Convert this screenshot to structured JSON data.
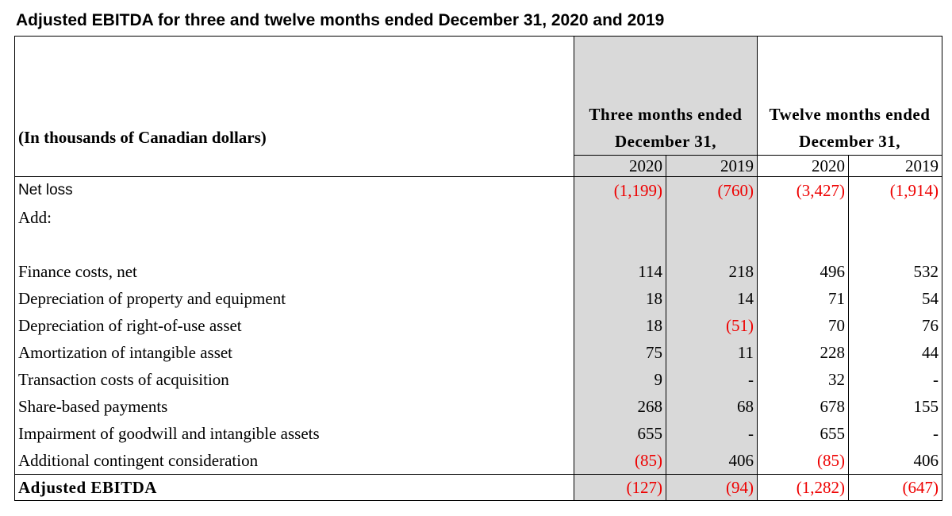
{
  "title": "Adjusted EBITDA for three and twelve months ended December 31, 2020 and 2019",
  "header": {
    "unit_label": "(In thousands of Canadian dollars)",
    "column_groups": [
      "Three months ended December 31,",
      "Twelve months ended December 31,"
    ],
    "years": [
      "2020",
      "2019",
      "2020",
      "2019"
    ]
  },
  "table": {
    "rows": [
      {
        "label": "Net loss",
        "values": [
          "(1,199)",
          "(760)",
          "(3,427)",
          "(1,914)"
        ]
      },
      {
        "label": "Add:"
      },
      {
        "label": "Finance costs, net",
        "values": [
          "114",
          "218",
          "496",
          "532"
        ]
      },
      {
        "label": "Depreciation of property and equipment",
        "values": [
          "18",
          "14",
          "71",
          "54"
        ]
      },
      {
        "label": "Depreciation of right-of-use asset",
        "values": [
          "18",
          "(51)",
          "70",
          "76"
        ]
      },
      {
        "label": "Amortization of intangible asset",
        "values": [
          "75",
          "11",
          "228",
          "44"
        ]
      },
      {
        "label": "Transaction costs of acquisition",
        "values": [
          "9",
          "-",
          "32",
          "-"
        ]
      },
      {
        "label": "Share-based payments",
        "values": [
          "268",
          "68",
          "678",
          "155"
        ]
      },
      {
        "label": "Impairment of goodwill and intangible assets",
        "values": [
          "655",
          "-",
          "655",
          "-"
        ]
      },
      {
        "label": "Additional contingent consideration",
        "values": [
          "(85)",
          "406",
          "(85)",
          "406"
        ]
      }
    ],
    "total": {
      "label": "Adjusted EBITDA",
      "values": [
        "(127)",
        "(94)",
        "(1,282)",
        "(647)"
      ]
    }
  }
}
